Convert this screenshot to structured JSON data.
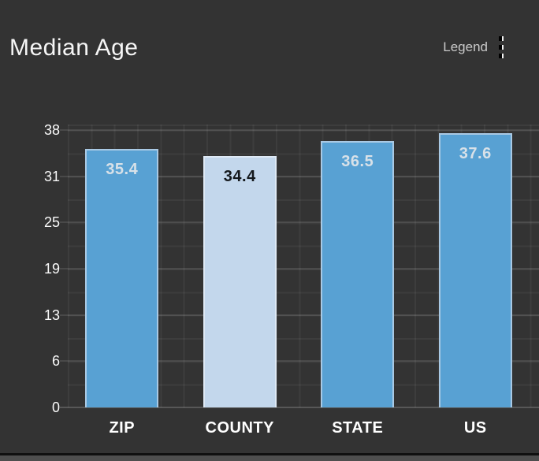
{
  "header": {
    "title": "Median Age",
    "legend_label": "Legend"
  },
  "chart_data": {
    "type": "bar",
    "title": "Median Age",
    "categories": [
      "ZIP",
      "COUNTY",
      "STATE",
      "US"
    ],
    "values": [
      35.4,
      34.4,
      36.5,
      37.6
    ],
    "value_labels": [
      "35.4",
      "34.4",
      "36.5",
      "37.6"
    ],
    "highlighted_index": 1,
    "ytick_labels": [
      "38",
      "31",
      "25",
      "19",
      "13",
      "6",
      "0"
    ],
    "ylim": [
      0,
      38
    ],
    "grid": true,
    "legend_position": "top-right-collapsed",
    "colors": {
      "background": "#333333",
      "bar_fill": "#58A1D3",
      "bar_border": "#A9C9E4",
      "bar_value_text": "#D8E1E8",
      "highlight_bar_fill": "#C3D7EC",
      "highlight_bar_border": "#DEE9F5",
      "highlight_value_text": "#14181C",
      "axis_text": "#FAFAFA"
    }
  }
}
